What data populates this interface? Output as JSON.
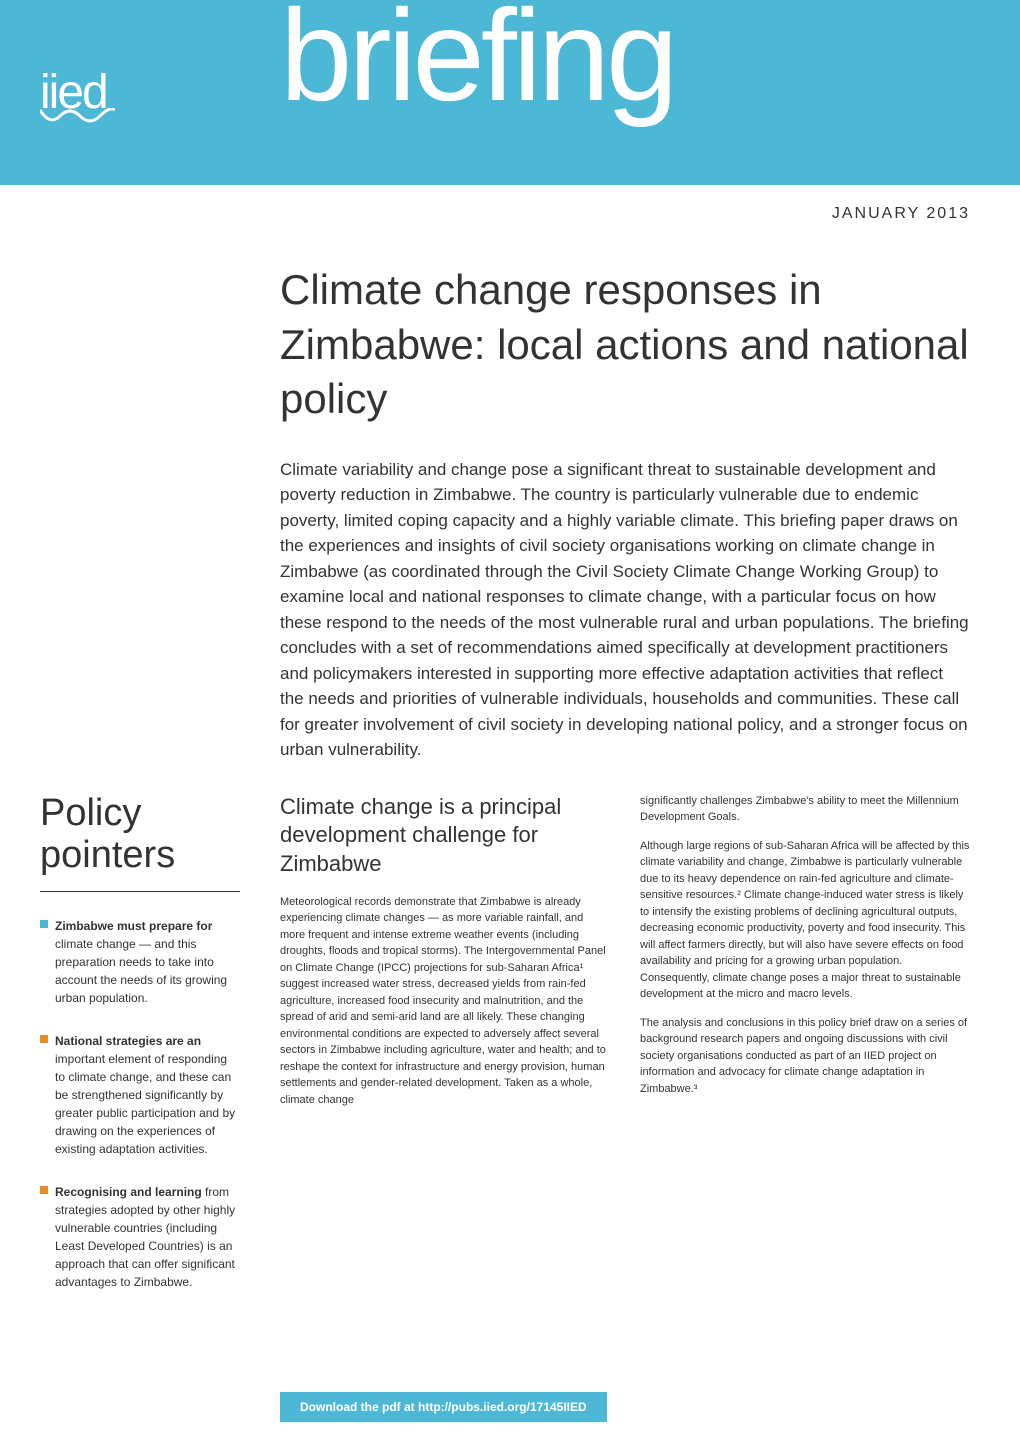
{
  "header": {
    "logo": "iied",
    "banner_text": "briefing",
    "banner_bg_color": "#4db8d6",
    "text_color": "#ffffff"
  },
  "date": "JANUARY 2013",
  "title": "Climate change responses in Zimbabwe: local actions and national policy",
  "intro": "Climate variability and change pose a significant threat to sustainable development and poverty reduction in Zimbabwe. The country is particularly vulnerable due to endemic poverty, limited coping capacity and a highly variable climate. This briefing paper draws on the experiences and insights of civil society organisations working on climate change in Zimbabwe (as coordinated through the Civil Society Climate Change Working Group) to examine local and national responses to climate change, with a particular focus on how these respond to the needs of the most vulnerable rural and urban populations. The briefing concludes with a set of recommendations aimed specifically at development practitioners and policymakers interested in supporting more effective adaptation activities that reflect the needs and priorities of vulnerable individuals, households and communities. These call for greater involvement of civil society in developing national policy, and a stronger focus on urban vulnerability.",
  "sidebar": {
    "title": "Policy pointers",
    "pointers": [
      {
        "bullet_color": "#4db8d6",
        "bold": "Zimbabwe must prepare for",
        "text": " climate change — and this preparation needs to take into account the needs of its growing urban population."
      },
      {
        "bullet_color": "#e98b2a",
        "bold": "National strategies are an",
        "text": " important element of responding to climate change, and these can be strengthened significantly by greater public participation and by drawing on the experiences of existing adaptation activities."
      },
      {
        "bullet_color": "#e98b2a",
        "bold": "Recognising and learning",
        "text": " from strategies adopted by other highly vulnerable countries (including Least Developed Countries) is an approach that can offer significant advantages to Zimbabwe."
      }
    ]
  },
  "main": {
    "section_heading": "Climate change is a principal development challenge for Zimbabwe",
    "col1_paragraphs": [
      "Meteorological records demonstrate that Zimbabwe is already experiencing climate changes — as more variable rainfall, and more frequent and intense extreme weather events (including droughts, floods and tropical storms). The Intergovernmental Panel on Climate Change (IPCC) projections for sub-Saharan Africa¹ suggest increased water stress, decreased yields from rain-fed agriculture, increased food insecurity and malnutrition, and the spread of arid and semi-arid land are all likely. These changing environmental conditions are expected to adversely affect several sectors in Zimbabwe including agriculture, water and health; and to reshape the context for infrastructure and energy provision, human settlements and gender-related development. Taken as a whole, climate change"
    ],
    "col2_paragraphs": [
      "significantly challenges Zimbabwe's ability to meet the Millennium Development Goals.",
      "Although large regions of sub-Saharan Africa will be affected by this climate variability and change, Zimbabwe is particularly vulnerable due to its heavy dependence on rain-fed agriculture and climate-sensitive resources.² Climate change-induced water stress is likely to intensify the existing problems of declining agricultural outputs, decreasing economic productivity, poverty and food insecurity. This will affect farmers directly, but will also have severe effects on food availability and pricing for a growing urban population. Consequently, climate change poses a major threat to sustainable development at the micro and macro levels.",
      "The analysis and conclusions in this policy brief draw on a series of background research papers and ongoing discussions with civil society organisations conducted as part of an IIED project on information and advocacy for climate change adaptation in Zimbabwe.³"
    ]
  },
  "footer": {
    "download_text": "Download the pdf at http://pubs.iied.org/17145IIED"
  },
  "colors": {
    "primary": "#4db8d6",
    "accent": "#e98b2a",
    "text": "#333333",
    "background": "#ffffff"
  }
}
